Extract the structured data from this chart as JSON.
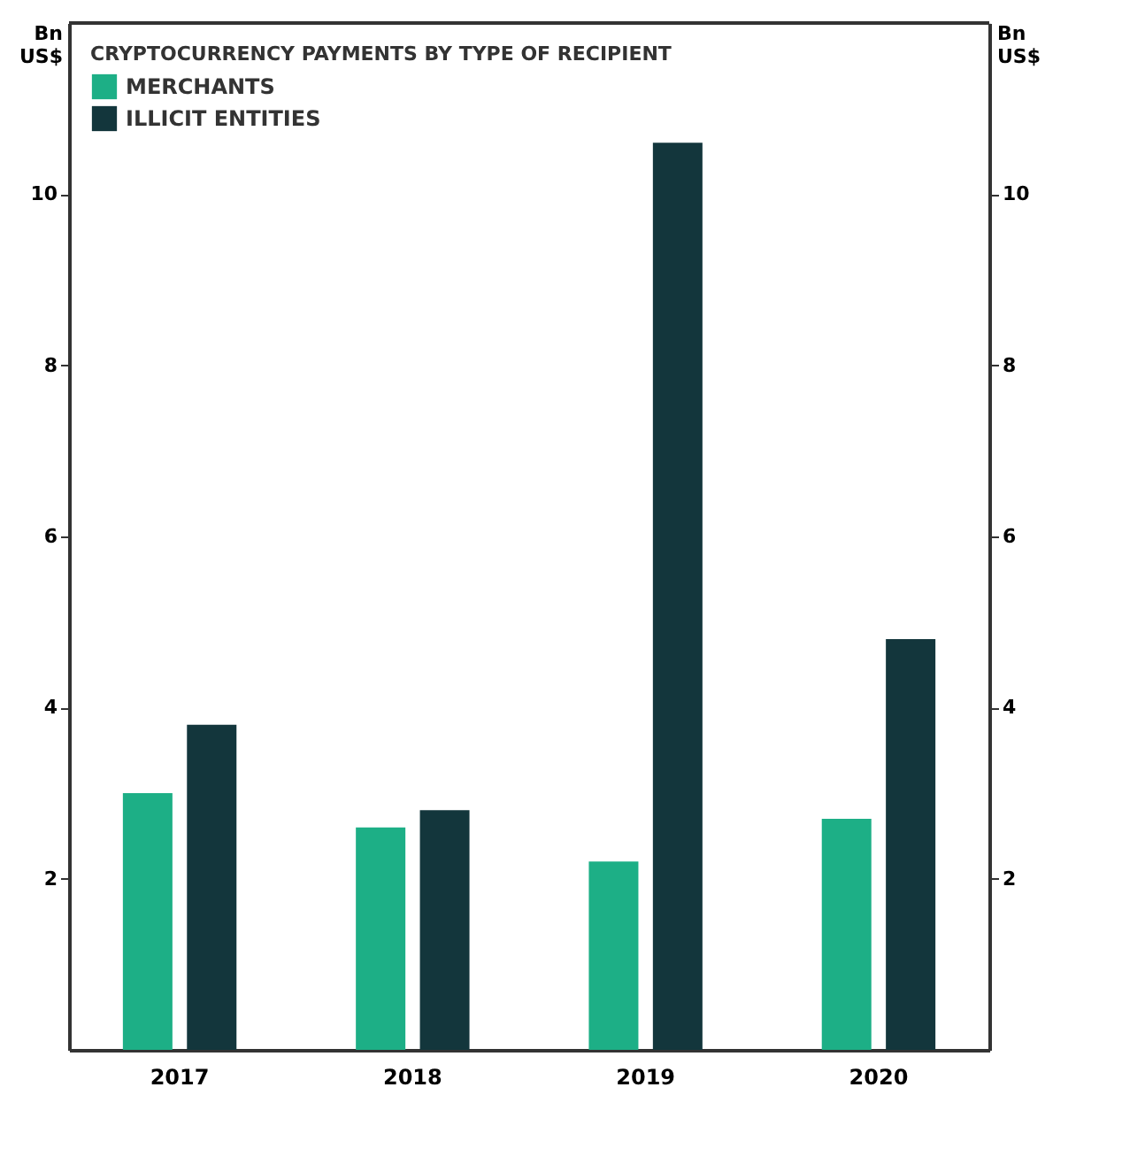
{
  "chart_data": {
    "type": "bar",
    "categories": [
      "2017",
      "2018",
      "2019",
      "2020"
    ],
    "series": [
      {
        "name": "MERCHANTS",
        "color": "#1daf86",
        "values": [
          3.0,
          2.6,
          2.2,
          2.7
        ]
      },
      {
        "name": "ILLICIT ENTITIES",
        "color": "#13363c",
        "values": [
          3.8,
          2.8,
          10.6,
          4.8
        ]
      }
    ],
    "legend_title": "CRYPTOCURRENCY PAYMENTS BY TYPE OF RECIPIENT",
    "ylabel": "Bn US$",
    "y2label": "Bn US$",
    "ylim": [
      0,
      12
    ],
    "yticks": [
      2,
      4,
      6,
      8,
      10
    ],
    "y2lim": [
      0,
      12
    ],
    "y2ticks": [
      2,
      4,
      6,
      8,
      10
    ],
    "legend": "top left",
    "grid": false
  }
}
